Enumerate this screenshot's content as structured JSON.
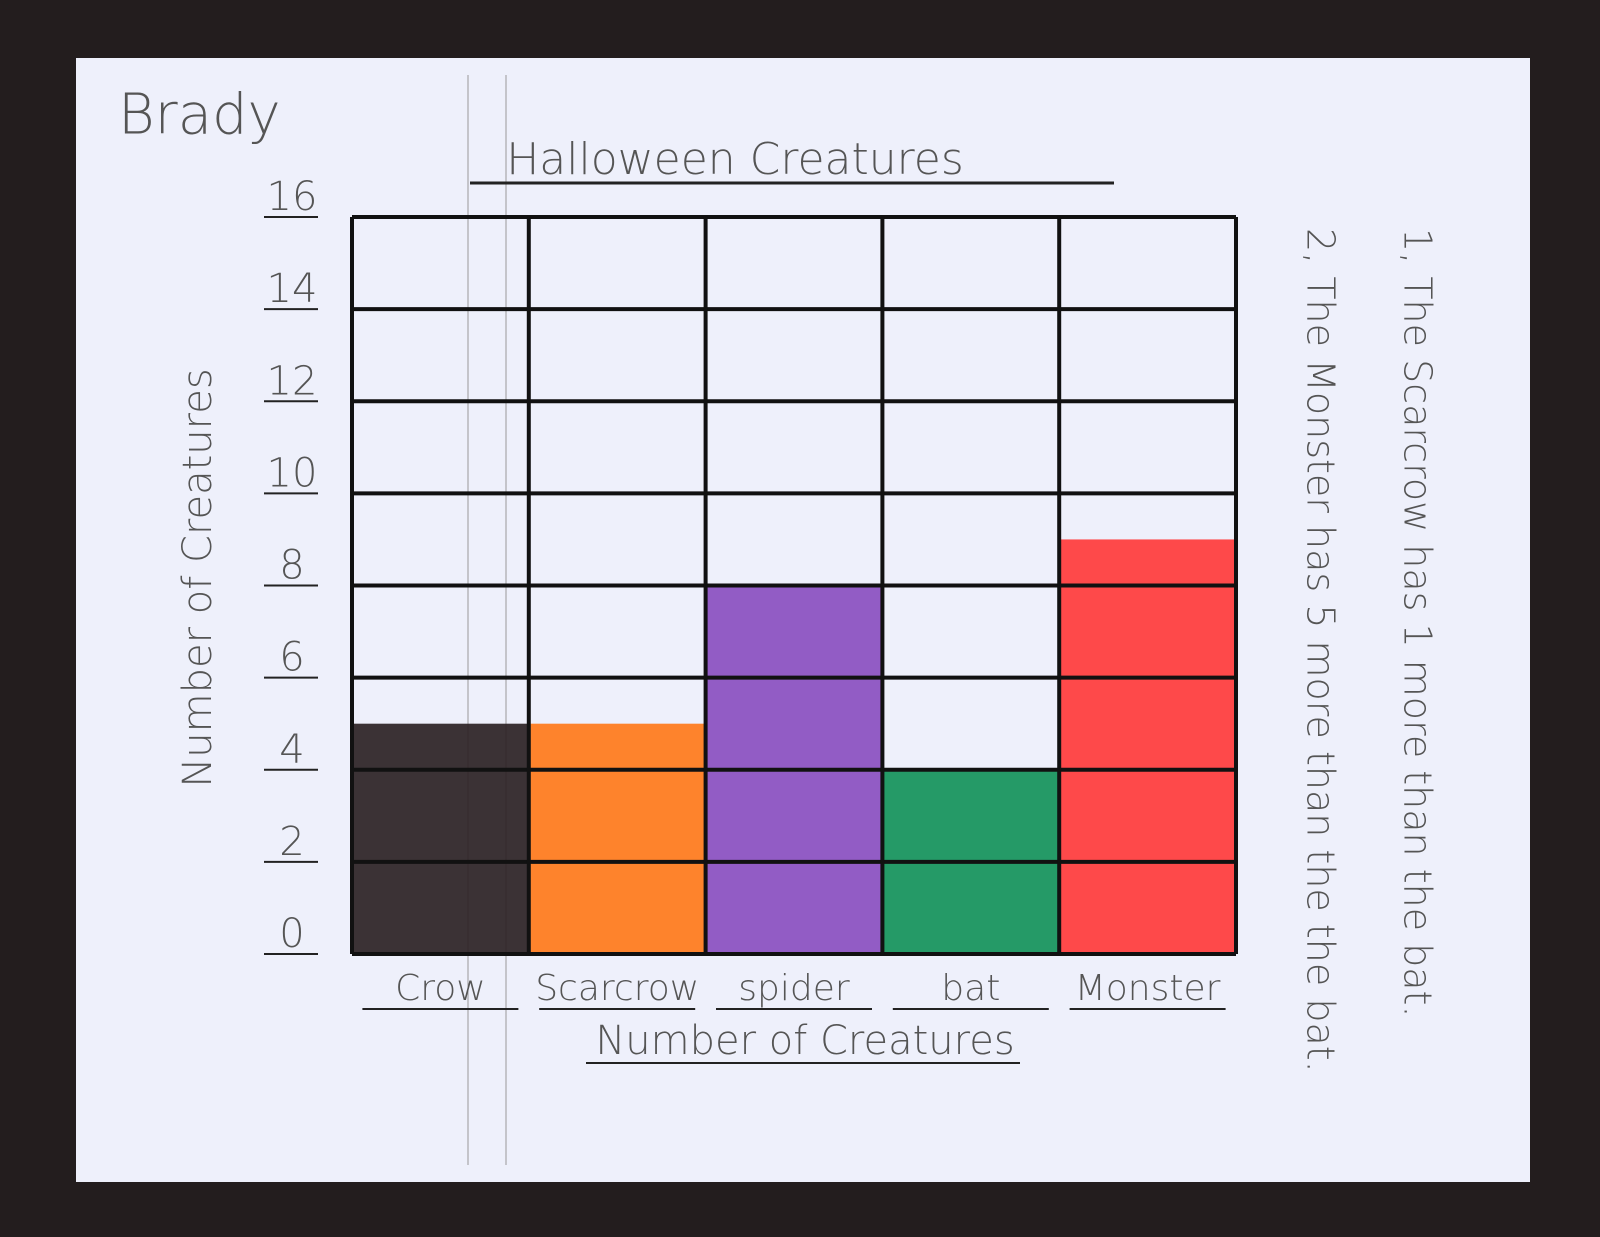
{
  "student": "Brady",
  "notes": [
    "1, The Scarcrow has 1 more than the bat.",
    "2, The Monster has 5 more than the the bat."
  ],
  "chart_data": {
    "type": "bar",
    "title": "Halloween Creatures",
    "y_label": "Number of Creatures",
    "x_label": "Number of Creatures",
    "categories": [
      "Crow",
      "Scarcrow",
      "spider",
      "bat",
      "Monster"
    ],
    "values": [
      5,
      5,
      8,
      4,
      9
    ],
    "colors": [
      "#2b2224",
      "#ff7a1a",
      "#8a4fc0",
      "#13925a",
      "#ff3b3b"
    ],
    "ylim": [
      0,
      16
    ],
    "yticks": [
      0,
      2,
      4,
      6,
      8,
      10,
      12,
      14,
      16
    ],
    "grid": true
  }
}
